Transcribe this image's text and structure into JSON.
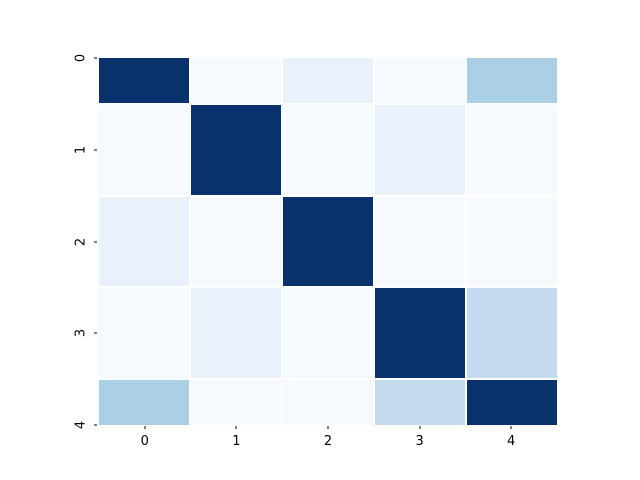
{
  "figure": {
    "background_color": "#ffffff",
    "tick_color": "#000000",
    "label_color": "#000000"
  },
  "chart_data": {
    "type": "heatmap",
    "title": "",
    "xlabel": "",
    "ylabel": "",
    "colormap": "Blues",
    "legend": "none",
    "grid": false,
    "x_tick_labels": [
      "0",
      "1",
      "2",
      "3",
      "4"
    ],
    "y_tick_labels": [
      "0",
      "1",
      "2",
      "3",
      "4"
    ],
    "y_tick_rotation_deg": 90,
    "layout_hint": "y-axis clipped so first and last rows render at half height; white 2px gaps between cells; no axes spines",
    "values": [
      [
        1.0,
        0.02,
        0.08,
        0.02,
        0.34
      ],
      [
        0.02,
        1.0,
        0.02,
        0.08,
        0.02
      ],
      [
        0.08,
        0.02,
        1.0,
        0.02,
        0.02
      ],
      [
        0.02,
        0.08,
        0.02,
        1.0,
        0.24
      ],
      [
        0.34,
        0.02,
        0.02,
        0.24,
        1.0
      ]
    ],
    "cell_colors": [
      [
        "#09316b",
        "#f6fafe",
        "#e9f1fa",
        "#f6fafe",
        "#abd0e6"
      ],
      [
        "#f6fafe",
        "#09316b",
        "#f6fafe",
        "#e9f1fa",
        "#f6fafe"
      ],
      [
        "#e9f1fa",
        "#f6fafe",
        "#09316b",
        "#f6fafe",
        "#f6fafe"
      ],
      [
        "#f6fafe",
        "#e9f1fa",
        "#f6fafe",
        "#09316b",
        "#c5daee"
      ],
      [
        "#abd0e6",
        "#f6fafe",
        "#f6fafe",
        "#c5daee",
        "#09316b"
      ]
    ],
    "x_tick_centers_pct": [
      10,
      30,
      50,
      70,
      90
    ],
    "y_tick_centers_pct": [
      0,
      25,
      50,
      75,
      100
    ]
  }
}
